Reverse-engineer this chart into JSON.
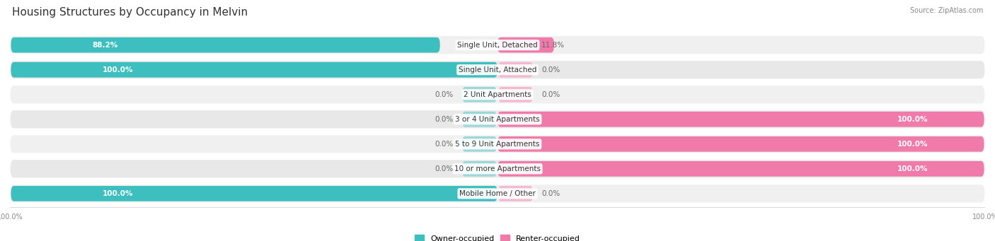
{
  "title": "Housing Structures by Occupancy in Melvin",
  "source": "Source: ZipAtlas.com",
  "categories": [
    "Single Unit, Detached",
    "Single Unit, Attached",
    "2 Unit Apartments",
    "3 or 4 Unit Apartments",
    "5 to 9 Unit Apartments",
    "10 or more Apartments",
    "Mobile Home / Other"
  ],
  "owner_pct": [
    88.2,
    100.0,
    0.0,
    0.0,
    0.0,
    0.0,
    100.0
  ],
  "renter_pct": [
    11.8,
    0.0,
    0.0,
    100.0,
    100.0,
    100.0,
    0.0
  ],
  "owner_color": "#3dbfbf",
  "renter_color": "#f07baa",
  "row_bg_color": "#e8e8e8",
  "row_alt_bg_color": "#f0f0f0",
  "bar_height": 0.62,
  "title_fontsize": 11,
  "label_fontsize": 7.5,
  "cat_fontsize": 7.5,
  "legend_fontsize": 8,
  "axis_label_fontsize": 7,
  "stub_owner_color": "#9dd8d8",
  "stub_renter_color": "#f5b8d0"
}
